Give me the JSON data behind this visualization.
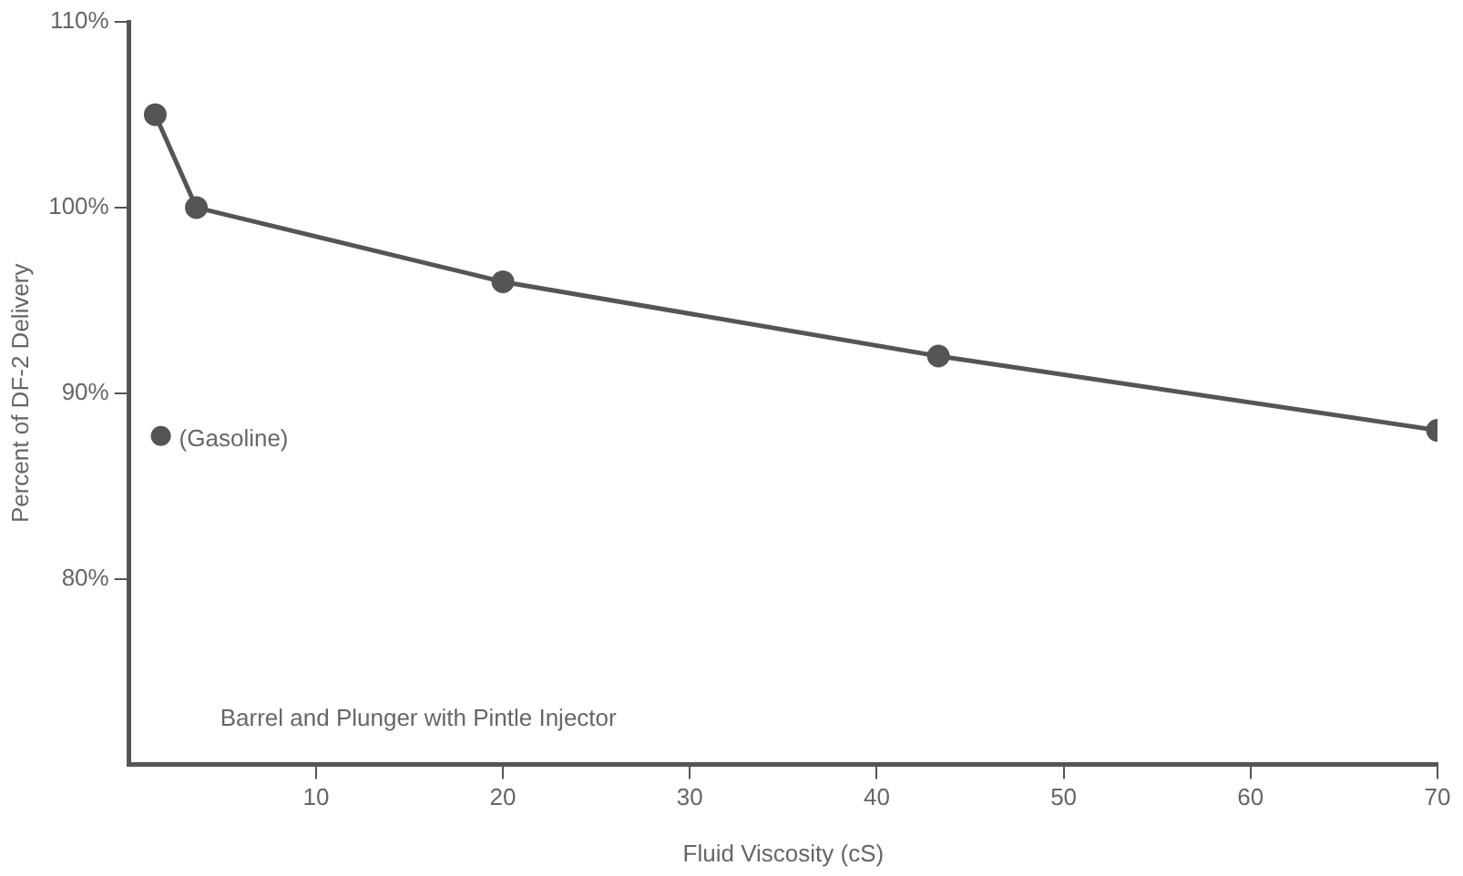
{
  "chart_data": {
    "type": "line",
    "xlabel": "Fluid Viscosity (cS)",
    "ylabel": "Percent of DF-2 Delivery",
    "series": [
      {
        "type": "line",
        "color": "#555555",
        "x": [
          1.4,
          3.6,
          20,
          43.3,
          70
        ],
        "values": [
          105,
          100,
          96,
          92,
          88
        ],
        "marker": "circle"
      },
      {
        "type": "scatter",
        "color": "#555555",
        "x": [
          1.7
        ],
        "values": [
          87.7
        ],
        "marker": "circle"
      }
    ],
    "xlim": [
      0,
      70
    ],
    "xticks": [
      10,
      20,
      30,
      40,
      50,
      60,
      70
    ],
    "ylim": [
      70,
      110
    ],
    "yticks": [
      {
        "value": 80,
        "label": "80%"
      },
      {
        "value": 90,
        "label": "90%"
      },
      {
        "value": 100,
        "label": "100%"
      },
      {
        "value": 110,
        "label": "110%"
      }
    ],
    "grid": false,
    "legend": false,
    "annotations": [
      {
        "text": "(Gasoline)",
        "x": 1.7,
        "y": 87.7
      },
      "Barrel and Plunger with Pintle Injector"
    ]
  }
}
